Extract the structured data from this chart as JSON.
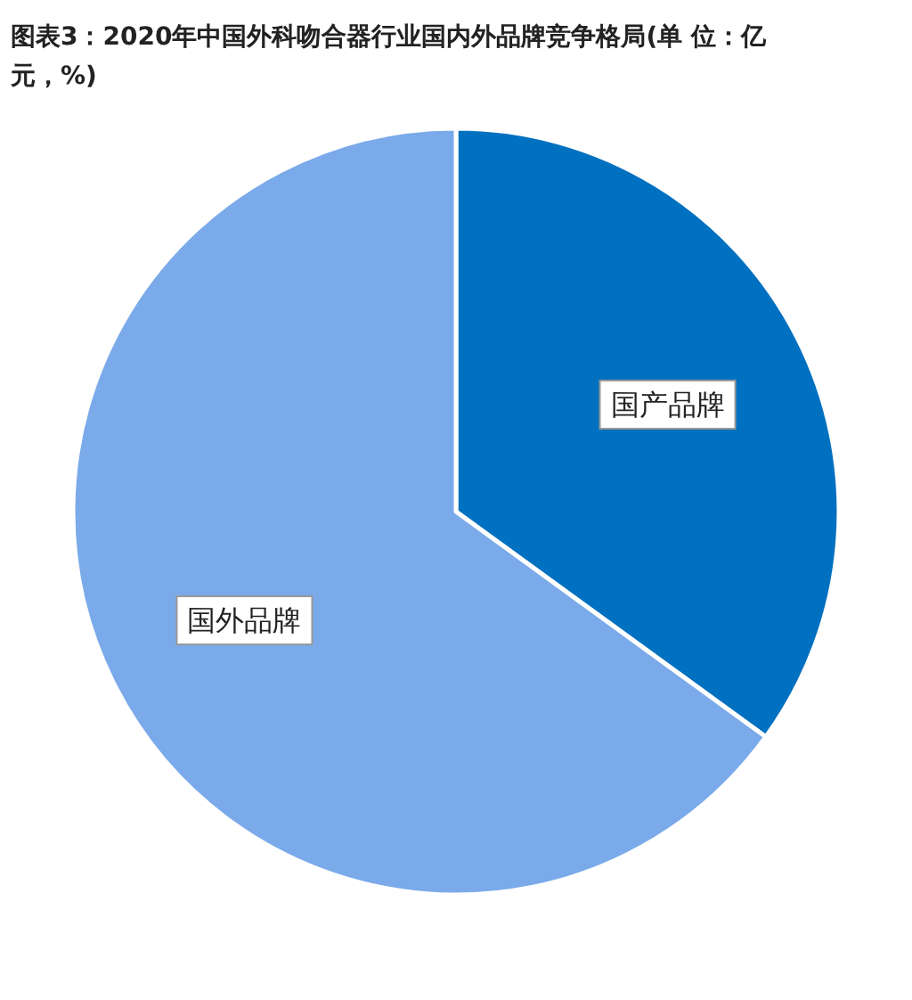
{
  "chart_data": {
    "type": "pie",
    "title": "图表3：2020年中国外科吻合器行业国内外品牌竞争格局(单 位：亿元，%)",
    "categories": [
      "国产品牌",
      "国外品牌"
    ],
    "values": [
      35,
      65
    ],
    "colors": [
      "#0070c0",
      "#7aaaea"
    ]
  }
}
